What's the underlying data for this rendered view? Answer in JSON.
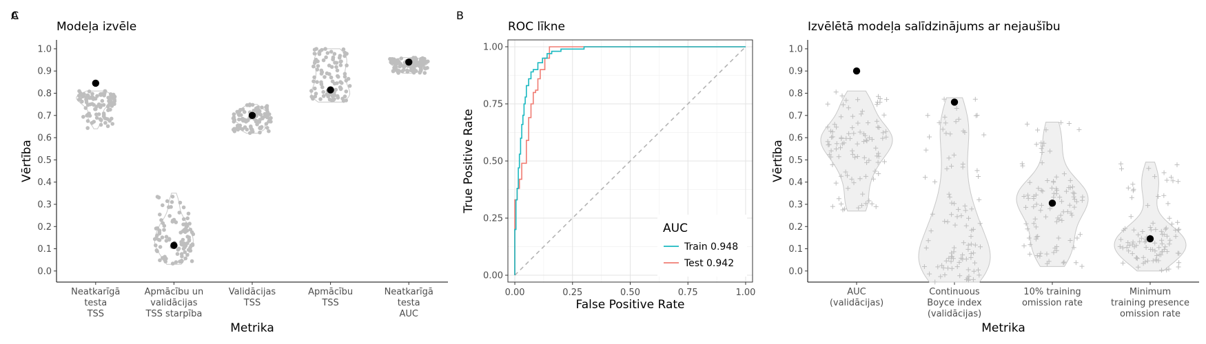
{
  "figure": {
    "background": "#ffffff"
  },
  "chart_data": [
    {
      "panel_label": "A",
      "type": "scatter",
      "title": "Modeļa izvēle",
      "xlabel": "Metrika",
      "ylabel": "Vērtība",
      "ylim": [
        -0.05,
        1.04
      ],
      "yticks": [
        0.0,
        0.1,
        0.2,
        0.3,
        0.4,
        0.5,
        0.6,
        0.7,
        0.8,
        0.9,
        1.0
      ],
      "ytick_labels": [
        "0.0",
        "0.1",
        "0.2",
        "0.3",
        "0.4",
        "0.5",
        "0.6",
        "0.7",
        "0.8",
        "0.9",
        "1.0"
      ],
      "grid": false,
      "categories": [
        [
          "Neatkarīgā",
          "testa",
          "TSS"
        ],
        [
          "Apmācību un",
          "validācijas",
          "TSS starpība"
        ],
        [
          "Validācijas",
          "TSS"
        ],
        [
          "Apmācību",
          "TSS"
        ],
        [
          "Neatkarīgā",
          "testa",
          "AUC"
        ]
      ],
      "point_color": "#bebebe",
      "highlight_color": "#000000",
      "distributions": [
        {
          "min": 0.64,
          "q1": 0.74,
          "median": 0.77,
          "q3": 0.79,
          "max": 0.81,
          "n": 100
        },
        {
          "min": 0.03,
          "q1": 0.1,
          "median": 0.15,
          "q3": 0.23,
          "max": 0.35,
          "n": 100
        },
        {
          "min": 0.62,
          "q1": 0.67,
          "median": 0.69,
          "q3": 0.71,
          "max": 0.75,
          "n": 100
        },
        {
          "min": 0.76,
          "q1": 0.81,
          "median": 0.86,
          "q3": 0.94,
          "max": 1.0,
          "n": 100
        },
        {
          "min": 0.89,
          "q1": 0.92,
          "median": 0.935,
          "q3": 0.945,
          "max": 0.96,
          "n": 100
        }
      ],
      "selected_values": [
        0.845,
        0.115,
        0.7,
        0.815,
        0.94
      ]
    },
    {
      "panel_label": "B",
      "type": "line",
      "title": "ROC līkne",
      "xlabel": "False Positive Rate",
      "ylabel": "True Positive Rate",
      "xlim": [
        -0.03,
        1.03
      ],
      "ylim": [
        -0.03,
        1.03
      ],
      "xticks": [
        0.0,
        0.25,
        0.5,
        0.75,
        1.0
      ],
      "xtick_labels": [
        "0.00",
        "0.25",
        "0.50",
        "0.75",
        "1.00"
      ],
      "yticks": [
        0.0,
        0.25,
        0.5,
        0.75,
        1.0
      ],
      "ytick_labels": [
        "0.00",
        "0.25",
        "0.50",
        "0.75",
        "1.00"
      ],
      "grid": true,
      "legend": {
        "title": "AUC",
        "position": "bottom-right"
      },
      "diagonal": {
        "color": "#b3b3b3",
        "dash": true
      },
      "series": [
        {
          "name": "Train 0.948",
          "color": "#19b8c0",
          "x": [
            0.0,
            0.0,
            0.005,
            0.005,
            0.01,
            0.01,
            0.015,
            0.015,
            0.02,
            0.02,
            0.025,
            0.025,
            0.03,
            0.03,
            0.035,
            0.035,
            0.04,
            0.04,
            0.045,
            0.045,
            0.05,
            0.05,
            0.06,
            0.06,
            0.07,
            0.07,
            0.08,
            0.08,
            0.1,
            0.1,
            0.12,
            0.12,
            0.14,
            0.14,
            0.16,
            0.16,
            0.2,
            0.2,
            0.3,
            0.3,
            1.0
          ],
          "y": [
            0.0,
            0.2,
            0.2,
            0.33,
            0.33,
            0.38,
            0.38,
            0.47,
            0.47,
            0.53,
            0.53,
            0.6,
            0.6,
            0.66,
            0.66,
            0.7,
            0.7,
            0.75,
            0.75,
            0.78,
            0.78,
            0.83,
            0.83,
            0.86,
            0.86,
            0.89,
            0.89,
            0.9,
            0.9,
            0.93,
            0.93,
            0.95,
            0.95,
            0.97,
            0.97,
            0.98,
            0.98,
            0.99,
            0.99,
            1.0,
            1.0
          ]
        },
        {
          "name": "Test 0.942",
          "color": "#f07b72",
          "x": [
            0.0,
            0.0,
            0.01,
            0.01,
            0.02,
            0.02,
            0.03,
            0.03,
            0.04,
            0.04,
            0.05,
            0.05,
            0.06,
            0.06,
            0.07,
            0.07,
            0.08,
            0.08,
            0.09,
            0.09,
            0.1,
            0.1,
            0.11,
            0.11,
            0.12,
            0.12,
            0.13,
            0.13,
            0.15,
            0.15,
            1.0
          ],
          "y": [
            0.0,
            0.33,
            0.33,
            0.38,
            0.38,
            0.42,
            0.42,
            0.49,
            0.49,
            0.49,
            0.49,
            0.59,
            0.59,
            0.69,
            0.69,
            0.75,
            0.75,
            0.8,
            0.8,
            0.81,
            0.81,
            0.86,
            0.86,
            0.9,
            0.9,
            0.9,
            0.9,
            0.95,
            0.95,
            1.0,
            1.0
          ]
        }
      ]
    },
    {
      "panel_label": "C",
      "type": "scatter",
      "title": "Izvēlētā modeļa salīdzinājums ar nejaušību",
      "xlabel": "Metrika",
      "ylabel": "Vērtība",
      "ylim": [
        -0.05,
        1.04
      ],
      "yticks": [
        0.0,
        0.1,
        0.2,
        0.3,
        0.4,
        0.5,
        0.6,
        0.7,
        0.8,
        0.9,
        1.0
      ],
      "ytick_labels": [
        "0.0",
        "0.1",
        "0.2",
        "0.3",
        "0.4",
        "0.5",
        "0.6",
        "0.7",
        "0.8",
        "0.9",
        "1.0"
      ],
      "grid": false,
      "categories": [
        [
          "AUC",
          "(validācijas)"
        ],
        [
          "Continuous",
          "Boyce index",
          "(validācijas)"
        ],
        [
          "10% training",
          "omission rate"
        ],
        [
          "Minimum",
          "training presence",
          "omission rate"
        ]
      ],
      "point_color": "#bebebe",
      "violin_fill": "#f0f0f0",
      "highlight_color": "#000000",
      "distributions": [
        {
          "min": 0.27,
          "q1": 0.49,
          "median": 0.56,
          "q3": 0.63,
          "max": 0.81,
          "n": 100
        },
        {
          "min": -0.05,
          "q1": 0.02,
          "median": 0.12,
          "q3": 0.3,
          "max": 0.78,
          "n": 100
        },
        {
          "min": 0.02,
          "q1": 0.22,
          "median": 0.3,
          "q3": 0.38,
          "max": 0.67,
          "n": 100
        },
        {
          "min": 0.0,
          "q1": 0.08,
          "median": 0.14,
          "q3": 0.22,
          "max": 0.49,
          "n": 100
        }
      ],
      "selected_values": [
        0.9,
        0.76,
        0.305,
        0.145
      ]
    }
  ]
}
